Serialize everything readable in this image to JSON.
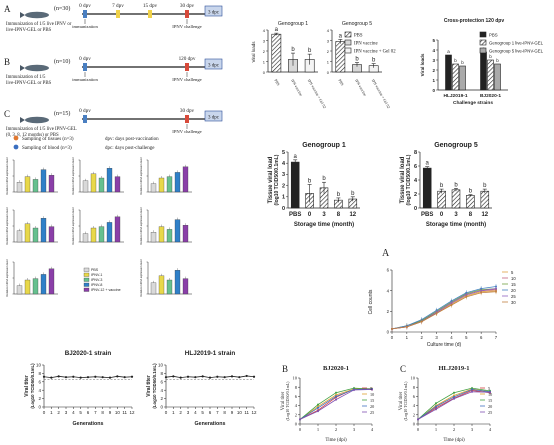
{
  "schematic": {
    "A": {
      "letter": "A",
      "n": "(n=30)",
      "text": [
        "Immunization of 1/5 live IPNV or",
        "live-IPNV-GEL or PBS"
      ],
      "days": [
        "0 dpv",
        "7 dpv",
        "15 dpv",
        "30 dpv"
      ],
      "dpc": "3 dpc",
      "arrow_label": "immunization",
      "challenge": "IPNV challenge"
    },
    "B": {
      "letter": "B",
      "n": "(n=10)",
      "text": [
        "Immunization of 1/5",
        "live-IPNV-GEL or PBS"
      ],
      "days": [
        "0 dpv",
        "120 dpv"
      ],
      "dpc": "3 dpc",
      "arrow_label": "immunization",
      "challenge": "IPNV challenge"
    },
    "C": {
      "letter": "C",
      "n": "(n=15)",
      "text": [
        "Immunization of 1/5 live IPNV-GEL",
        "(0, 3, 8, 12 months) or PBS"
      ],
      "days": [
        "0 dpv",
        "30 dpv"
      ],
      "dpc": "3 dpc",
      "challenge": "IPNV challenge",
      "legend": [
        "Sampling of tissues (n=3)",
        "Sampling of blood (n=3)"
      ],
      "notes": [
        "dpv: days post-vaccination",
        "dpc: days post-challenge"
      ]
    }
  },
  "genogroup_small": {
    "titles": [
      "Genogroup 1",
      "Genogroup 5"
    ],
    "ylabel": "Viral loads",
    "legend": [
      "PBS",
      "IPN vaccine",
      "IPN vaccine + Gel 02"
    ]
  },
  "cross": {
    "title": "Cross-protection 120 dpv",
    "ylabel": "Viral loads",
    "xlabel": "Challenge strains",
    "categories": [
      "HLJ2019-1",
      "BJ2020-1"
    ],
    "legend": [
      "PBS",
      "Genogroup 1 live-IPNV-GEL",
      "Genogroup 5 live-IPNV-GEL"
    ]
  },
  "storage": {
    "G1": {
      "title": "Genogroup 1"
    },
    "G5": {
      "title": "Genogroup 5"
    },
    "ylabel": "Tissue viral load",
    "ysub": "(log10 TCID50/0.1mL)",
    "xlabel": "Storage time (month)"
  },
  "immune": {
    "legend": [
      "PBS",
      "IPNV-1",
      "IPNV-3",
      "IPNV-8",
      "IPNV-12 + vaccine"
    ]
  },
  "growth": {
    "letter": "A",
    "ylabel": "Cell counts",
    "xlabel": "Culture time (d)",
    "legend": [
      "5",
      "10",
      "15",
      "20",
      "25",
      "30"
    ]
  },
  "passage": {
    "BJ": {
      "title": "BJ2020-1 strain"
    },
    "HLJ": {
      "title": "HLJ2019-1 strain"
    },
    "ylabel": "Viral titer",
    "ysub": "(Log10 TCID50/0.1mL)",
    "xlabel": "Generations"
  },
  "temp": {
    "B": {
      "letter": "B",
      "title": "BJ2020-1"
    },
    "C": {
      "letter": "C",
      "title": "HLJ2019-1"
    },
    "ylabel": "Viral titer",
    "ysub": "(Log10 TCID50/0.1mL)",
    "xlabel": "Time (dpi)",
    "legend": [
      "5",
      "10",
      "15",
      "20",
      "25"
    ]
  },
  "colors": {
    "teal": "#009090",
    "blue": "#2f80c8",
    "purple": "#8a3fa8",
    "yellow": "#e8d84a",
    "accent": "#1a3e8c"
  },
  "chart_data": [
    {
      "id": "storage_g1",
      "type": "bar",
      "title": "Genogroup 1",
      "categories": [
        "PBS",
        "0",
        "3",
        "8",
        "12"
      ],
      "values": [
        4.1,
        1.3,
        1.8,
        0.7,
        0.8
      ],
      "errors": [
        0.2,
        0.8,
        0.5,
        0.2,
        0.2
      ],
      "letters": [
        "a",
        "b",
        "b",
        "b",
        "b"
      ],
      "ylim": [
        0,
        5
      ],
      "yticks": [
        0,
        1,
        2,
        3,
        4,
        5
      ],
      "xlabel": "Storage time (month)",
      "ylabel": "Tissue viral load"
    },
    {
      "id": "storage_g5",
      "type": "bar",
      "title": "Genogroup 5",
      "categories": [
        "PBS",
        "0",
        "3",
        "8",
        "12"
      ],
      "values": [
        5.7,
        2.4,
        2.6,
        1.8,
        2.4
      ],
      "errors": [
        0.2,
        0.3,
        0.2,
        0.1,
        0.3
      ],
      "letters": [
        "a",
        "b",
        "b",
        "b",
        "b"
      ],
      "ylim": [
        0,
        8
      ],
      "yticks": [
        0,
        2,
        4,
        6,
        8
      ],
      "xlabel": "Storage time (month)",
      "ylabel": "Tissue viral load"
    },
    {
      "id": "gg1_small",
      "type": "bar",
      "title": "Genogroup 1",
      "categories": [
        "PBS",
        "IPN vaccine",
        "IPN vaccine + Gel 02"
      ],
      "values": [
        3.6,
        1.2,
        1.2
      ],
      "errors": [
        0.1,
        0.6,
        0.5
      ],
      "letters": [
        "a",
        "b",
        "b"
      ],
      "ylim": [
        0,
        4
      ],
      "yticks": [
        0,
        1,
        2,
        3,
        4
      ]
    },
    {
      "id": "gg5_small",
      "type": "bar",
      "title": "Genogroup 5",
      "categories": [
        "PBS",
        "IPN vaccine",
        "IPN vaccine + Gel 02"
      ],
      "values": [
        2.9,
        0.7,
        0.6
      ],
      "errors": [
        0.2,
        0.2,
        0.2
      ],
      "letters": [
        "a",
        "b",
        "b"
      ],
      "ylim": [
        0,
        4
      ],
      "yticks": [
        0,
        1,
        2,
        3,
        4
      ]
    },
    {
      "id": "cross",
      "type": "bar",
      "title": "Cross-protection 120 dpv",
      "categories": [
        "HLJ2019-1",
        "BJ2020-1"
      ],
      "series": [
        {
          "name": "PBS",
          "values": [
            3.5,
            3.8
          ]
        },
        {
          "name": "Genogroup 1 live-IPNV-GEL",
          "values": [
            2.6,
            3.0
          ]
        },
        {
          "name": "Genogroup 5 live-IPNV-GEL",
          "values": [
            2.4,
            2.6
          ]
        }
      ],
      "ylim": [
        0,
        5
      ],
      "yticks": [
        0,
        1,
        2,
        3,
        4,
        5
      ]
    },
    {
      "id": "passage_bj",
      "type": "line",
      "title": "BJ2020-1 strain",
      "x": [
        0,
        1,
        2,
        3,
        4,
        5,
        6,
        7,
        8,
        9,
        10,
        11,
        12
      ],
      "values": [
        7.2,
        7.0,
        7.3,
        7.1,
        7.2,
        7.0,
        7.1,
        7.2,
        7.1,
        7.0,
        7.3,
        7.1,
        7.2
      ],
      "ylim": [
        0,
        10
      ],
      "yticks": [
        0,
        2,
        4,
        6,
        8,
        10
      ],
      "reference": 6.5
    },
    {
      "id": "passage_hlj",
      "type": "line",
      "title": "HLJ2019-1 strain",
      "x": [
        0,
        1,
        2,
        3,
        4,
        5,
        6,
        7,
        8,
        9,
        10,
        11,
        12
      ],
      "values": [
        7.1,
        7.3,
        7.0,
        7.2,
        7.1,
        7.3,
        7.0,
        7.2,
        7.1,
        7.3,
        7.1,
        7.4,
        7.2
      ],
      "ylim": [
        0,
        10
      ],
      "yticks": [
        0,
        2,
        4,
        6,
        8,
        10
      ],
      "reference": 6.5
    },
    {
      "id": "temp_bj",
      "type": "line",
      "title": "BJ2020-1",
      "x": [
        0,
        1,
        2,
        3,
        4
      ],
      "series": [
        {
          "name": "5",
          "values": [
            1.0,
            3.0,
            5.8,
            7.6,
            7.5
          ]
        },
        {
          "name": "10",
          "values": [
            1.0,
            3.8,
            6.3,
            7.6,
            7.7
          ]
        },
        {
          "name": "15",
          "values": [
            1.0,
            4.2,
            6.8,
            7.8,
            7.6
          ]
        },
        {
          "name": "20",
          "values": [
            1.0,
            3.5,
            6.0,
            7.5,
            7.6
          ]
        },
        {
          "name": "25",
          "values": [
            1.0,
            2.8,
            5.3,
            7.4,
            7.5
          ]
        }
      ],
      "ylim": [
        0,
        10
      ],
      "yticks": [
        0,
        2,
        4,
        6,
        8,
        10
      ]
    },
    {
      "id": "temp_hlj",
      "type": "line",
      "title": "HLJ2019-1",
      "x": [
        0,
        1,
        2,
        3,
        4
      ],
      "series": [
        {
          "name": "5",
          "values": [
            1.0,
            3.5,
            5.6,
            7.3,
            6.8
          ]
        },
        {
          "name": "10",
          "values": [
            1.0,
            4.0,
            6.2,
            7.6,
            7.0
          ]
        },
        {
          "name": "15",
          "values": [
            1.0,
            4.5,
            6.8,
            7.8,
            7.2
          ]
        },
        {
          "name": "20",
          "values": [
            1.0,
            3.8,
            5.9,
            7.5,
            7.0
          ]
        },
        {
          "name": "25",
          "values": [
            1.0,
            3.2,
            5.5,
            7.0,
            6.9
          ]
        }
      ],
      "ylim": [
        0,
        10
      ],
      "yticks": [
        0,
        2,
        4,
        6,
        8,
        10
      ]
    },
    {
      "id": "growth",
      "type": "line",
      "title": "",
      "x": [
        0,
        1,
        2,
        3,
        4,
        5,
        6,
        7
      ],
      "series": [
        {
          "name": "5",
          "values": [
            0.3,
            0.5,
            1.0,
            1.8,
            2.7,
            3.5,
            3.9,
            4.0
          ]
        },
        {
          "name": "10",
          "values": [
            0.3,
            0.5,
            1.1,
            1.9,
            2.8,
            3.6,
            4.0,
            4.1
          ]
        },
        {
          "name": "15",
          "values": [
            0.3,
            0.6,
            1.1,
            2.0,
            2.9,
            3.7,
            4.1,
            4.2
          ]
        },
        {
          "name": "20",
          "values": [
            0.3,
            0.6,
            1.2,
            2.1,
            3.0,
            3.8,
            4.2,
            4.4
          ]
        },
        {
          "name": "25",
          "values": [
            0.3,
            0.5,
            1.0,
            1.9,
            2.8,
            3.6,
            4.0,
            4.2
          ]
        },
        {
          "name": "30",
          "values": [
            0.3,
            0.5,
            1.0,
            1.8,
            2.6,
            3.4,
            3.8,
            3.9
          ]
        }
      ],
      "ylim": [
        0,
        6
      ],
      "yticks": [
        0,
        2,
        4,
        6
      ]
    }
  ]
}
